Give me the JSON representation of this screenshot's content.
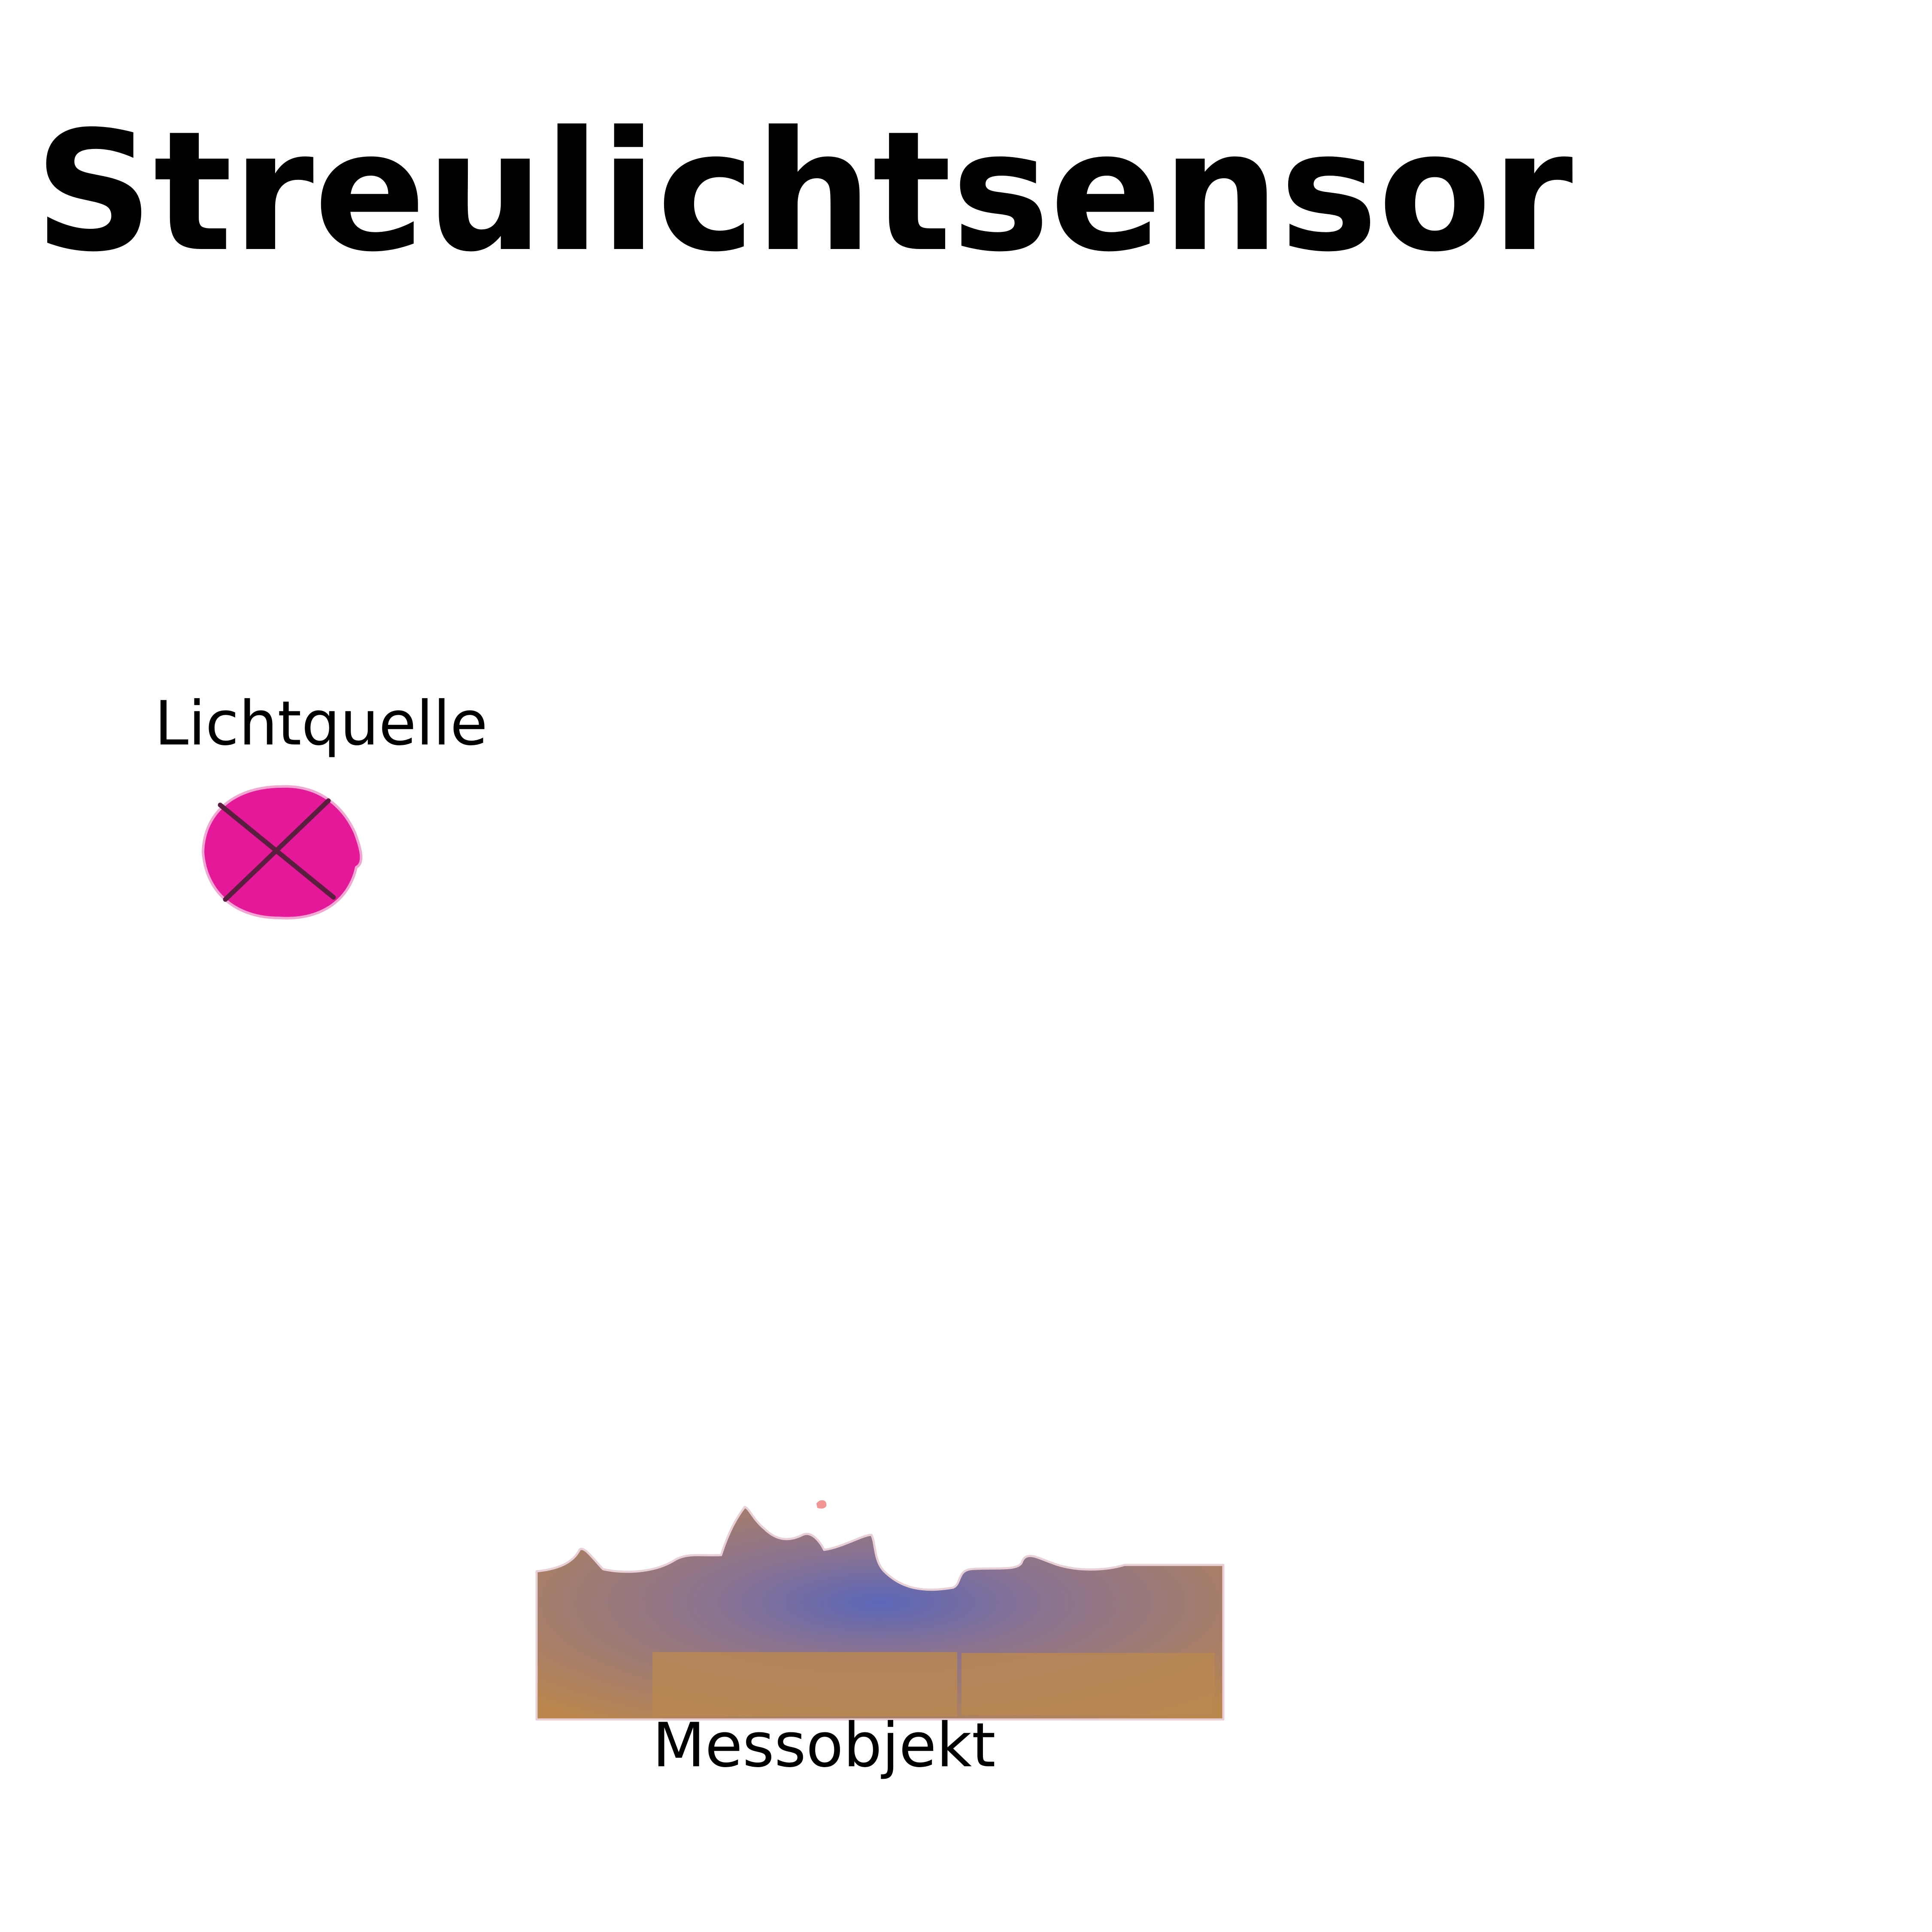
{
  "title": "Streulichtsensor",
  "labels": {
    "light_source": "Lichtquelle",
    "object": "Messobjekt"
  },
  "colors": {
    "light_source_fill": "#e5189a",
    "light_source_cross": "#5a1f3f",
    "object_fill_outer": "#bb864c",
    "object_fill_center": "#5c67b8",
    "text": "#000000"
  },
  "icons": {
    "light_source": "lamp-cross-symbol-icon"
  }
}
